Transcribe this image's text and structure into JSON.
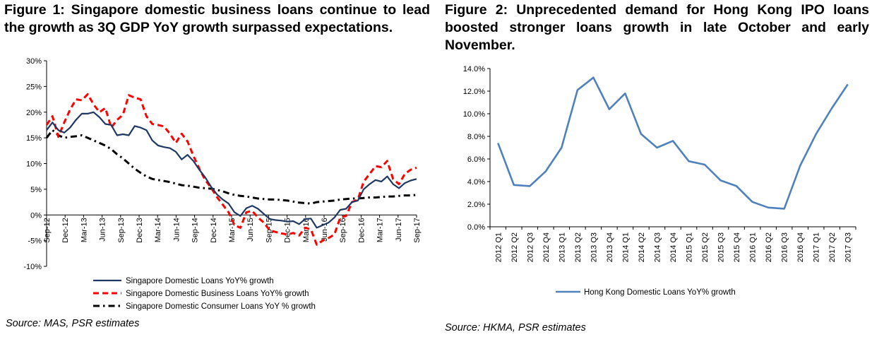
{
  "figure1": {
    "title": "Figure 1: Singapore domestic business loans continue to lead the growth as 3Q GDP YoY growth surpassed expectations.",
    "source": "Source: MAS, PSR estimates"
  },
  "figure2": {
    "title": "Figure 2: Unprecedented demand for Hong Kong IPO loans boosted stronger loans growth in late October and early November.",
    "source": "Source: HKMA, PSR estimates"
  },
  "chart_data": [
    {
      "type": "line",
      "title": "",
      "xlabel": "",
      "ylabel": "",
      "ylim": [
        -10,
        30
      ],
      "yticks": [
        "-10%",
        "-5%",
        "0%",
        "5%",
        "10%",
        "15%",
        "20%",
        "25%",
        "30%"
      ],
      "x_tick_labels": [
        "Sep-12",
        "Dec-12",
        "Mar-13",
        "Jun-13",
        "Sep-13",
        "Dec-13",
        "Mar-14",
        "Jun-14",
        "Sep-14",
        "Dec-14",
        "Mar-15",
        "Jun-15",
        "Sep-15",
        "Dec-15",
        "Mar-16",
        "Jun-16",
        "Sep-16",
        "Dec-16",
        "Mar-17",
        "Jun-17",
        "Sep-17"
      ],
      "x_start": "Sep-12",
      "x_end": "Oct-17",
      "grid": false,
      "legend_position": "bottom",
      "series": [
        {
          "name": "Singapore Domestic Loans YoY% growth",
          "color": "#1f3864",
          "style": "solid",
          "values": [
            16.5,
            18.0,
            16.5,
            16.0,
            17.0,
            18.5,
            19.7,
            19.7,
            20.0,
            19.0,
            17.7,
            17.5,
            15.5,
            15.7,
            15.5,
            17.3,
            17.0,
            16.5,
            14.5,
            13.5,
            13.2,
            13.0,
            12.3,
            10.8,
            11.7,
            10.5,
            8.8,
            7.3,
            5.5,
            4.0,
            3.0,
            2.2,
            0.5,
            -0.2,
            1.3,
            1.8,
            1.2,
            0.2,
            -0.8,
            -1.0,
            -1.1,
            -1.3,
            -1.2,
            -1.8,
            -0.8,
            -0.7,
            -2.5,
            -2.0,
            -1.5,
            -0.5,
            1.0,
            1.2,
            2.5,
            2.8,
            5.0,
            6.0,
            6.8,
            6.5,
            7.5,
            6.0,
            5.2,
            6.2,
            6.7,
            7.0
          ]
        },
        {
          "name": "Singapore Domestic Business Loans YoY% growth",
          "color": "#ff0000",
          "style": "dashed",
          "values": [
            17.5,
            19.2,
            15.2,
            18.0,
            20.5,
            22.5,
            22.3,
            23.5,
            21.5,
            20.0,
            20.8,
            17.0,
            18.5,
            19.5,
            23.3,
            22.8,
            22.5,
            19.2,
            17.7,
            17.5,
            17.2,
            15.8,
            14.0,
            15.8,
            14.3,
            11.5,
            9.0,
            6.8,
            5.3,
            3.5,
            2.0,
            0.5,
            -2.0,
            -2.5,
            0.5,
            0.8,
            -0.5,
            -1.5,
            -3.0,
            -3.3,
            -3.6,
            -3.8,
            -3.5,
            -4.0,
            -2.5,
            -2.8,
            -5.8,
            -5.0,
            -4.5,
            -3.8,
            -0.5,
            -0.2,
            2.5,
            3.0,
            6.5,
            8.0,
            9.5,
            9.3,
            10.5,
            7.0,
            6.0,
            8.0,
            8.8,
            9.2
          ]
        },
        {
          "name": "Singapore Domestic Consumer Loans YoY % growth",
          "color": "#000000",
          "style": "dashdot",
          "values": [
            15.0,
            16.5,
            15.5,
            15.0,
            15.2,
            15.3,
            15.5,
            15.0,
            14.5,
            14.0,
            13.5,
            12.8,
            11.8,
            11.0,
            10.0,
            9.0,
            8.2,
            7.5,
            7.0,
            6.8,
            6.6,
            6.4,
            6.1,
            5.8,
            5.7,
            5.5,
            5.3,
            5.2,
            5.1,
            4.9,
            4.6,
            4.2,
            3.9,
            3.7,
            3.6,
            3.4,
            3.2,
            3.1,
            3.0,
            3.0,
            2.9,
            2.8,
            2.6,
            2.4,
            2.3,
            2.2,
            2.5,
            2.6,
            2.7,
            2.8,
            3.0,
            3.1,
            3.2,
            3.2,
            3.3,
            3.4,
            3.4,
            3.5,
            3.6,
            3.6,
            3.7,
            3.8,
            3.8,
            3.9
          ]
        }
      ]
    },
    {
      "type": "line",
      "title": "",
      "xlabel": "",
      "ylabel": "",
      "ylim": [
        0,
        14
      ],
      "yticks": [
        "0.0%",
        "2.0%",
        "4.0%",
        "6.0%",
        "8.0%",
        "10.0%",
        "12.0%",
        "14.0%"
      ],
      "categories": [
        "2012 Q1",
        "2012 Q2",
        "2012 Q3",
        "2012 Q4",
        "2013 Q1",
        "2013 Q2",
        "2013 Q3",
        "2013 Q4",
        "2014 Q1",
        "2014 Q2",
        "2014 Q3",
        "2014 Q4",
        "2015 Q1",
        "2015 Q2",
        "2015 Q3",
        "2015 Q4",
        "2016 Q1",
        "2016 Q2",
        "2016 Q3",
        "2016 Q4",
        "2017 Q1",
        "2017 Q2",
        "2017 Q3"
      ],
      "grid": false,
      "legend_position": "bottom",
      "series": [
        {
          "name": "Hong Kong Domestic Loans YoY% growth",
          "color": "#4f81bd",
          "style": "solid",
          "values": [
            7.4,
            3.7,
            3.6,
            4.9,
            7.0,
            12.1,
            13.2,
            10.4,
            11.8,
            8.2,
            7.0,
            7.6,
            5.8,
            5.5,
            4.1,
            3.6,
            2.2,
            1.7,
            1.6,
            5.4,
            8.2,
            10.5,
            12.6
          ]
        }
      ]
    }
  ]
}
